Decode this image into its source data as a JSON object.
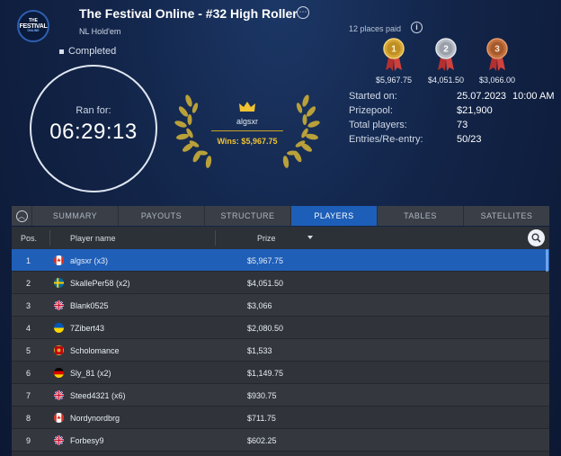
{
  "header": {
    "logo_line1": "THE",
    "logo_line2": "FESTIVAL",
    "logo_line3": "ONLINE",
    "title": "The Festival Online - #32 High Roller",
    "game_type": "NL Hold'em",
    "status": "Completed",
    "more_icon": "ellipsis-icon"
  },
  "timer": {
    "label": "Ran for:",
    "value": "06:29:13"
  },
  "winner": {
    "name": "algsxr",
    "wins": "Wins: $5,967.75"
  },
  "places": {
    "paid_text": "12 places paid",
    "medals": [
      {
        "place": "1",
        "amount": "$5,967.75",
        "color": "#d4a537"
      },
      {
        "place": "2",
        "amount": "$4,051.50",
        "color": "#b7bcc4"
      },
      {
        "place": "3",
        "amount": "$3,066.00",
        "color": "#c0703e"
      }
    ]
  },
  "stats": {
    "started_label": "Started on:",
    "started_date": "25.07.2023",
    "started_time": "10:00 AM",
    "prizepool_label": "Prizepool:",
    "prizepool_value": "$21,900",
    "players_label": "Total players:",
    "players_value": "73",
    "entries_label": "Entries/Re-entry:",
    "entries_value": "50/23"
  },
  "tabs": [
    {
      "label": "SUMMARY",
      "active": false
    },
    {
      "label": "PAYOUTS",
      "active": false
    },
    {
      "label": "STRUCTURE",
      "active": false
    },
    {
      "label": "PLAYERS",
      "active": true
    },
    {
      "label": "TABLES",
      "active": false
    },
    {
      "label": "SATELLITES",
      "active": false
    }
  ],
  "table": {
    "col_pos": "Pos.",
    "col_player": "Player name",
    "col_prize": "Prize",
    "rows": [
      {
        "pos": "1",
        "name": "algsxr (x3)",
        "prize": "$5,967.75",
        "flag": "canada"
      },
      {
        "pos": "2",
        "name": "SkallePer58 (x2)",
        "prize": "$4,051.50",
        "flag": "sweden"
      },
      {
        "pos": "3",
        "name": "Blank0525",
        "prize": "$3,066",
        "flag": "uk"
      },
      {
        "pos": "4",
        "name": "7Zibert43",
        "prize": "$2,080.50",
        "flag": "ukraine"
      },
      {
        "pos": "5",
        "name": "Scholomance",
        "prize": "$1,533",
        "flag": "montenegro"
      },
      {
        "pos": "6",
        "name": "Sly_81 (x2)",
        "prize": "$1,149.75",
        "flag": "germany"
      },
      {
        "pos": "7",
        "name": "Steed4321 (x6)",
        "prize": "$930.75",
        "flag": "uk"
      },
      {
        "pos": "8",
        "name": "Nordynordbrg",
        "prize": "$711.75",
        "flag": "canada"
      },
      {
        "pos": "9",
        "name": "Forbesy9",
        "prize": "$602.25",
        "flag": "uk"
      }
    ]
  }
}
